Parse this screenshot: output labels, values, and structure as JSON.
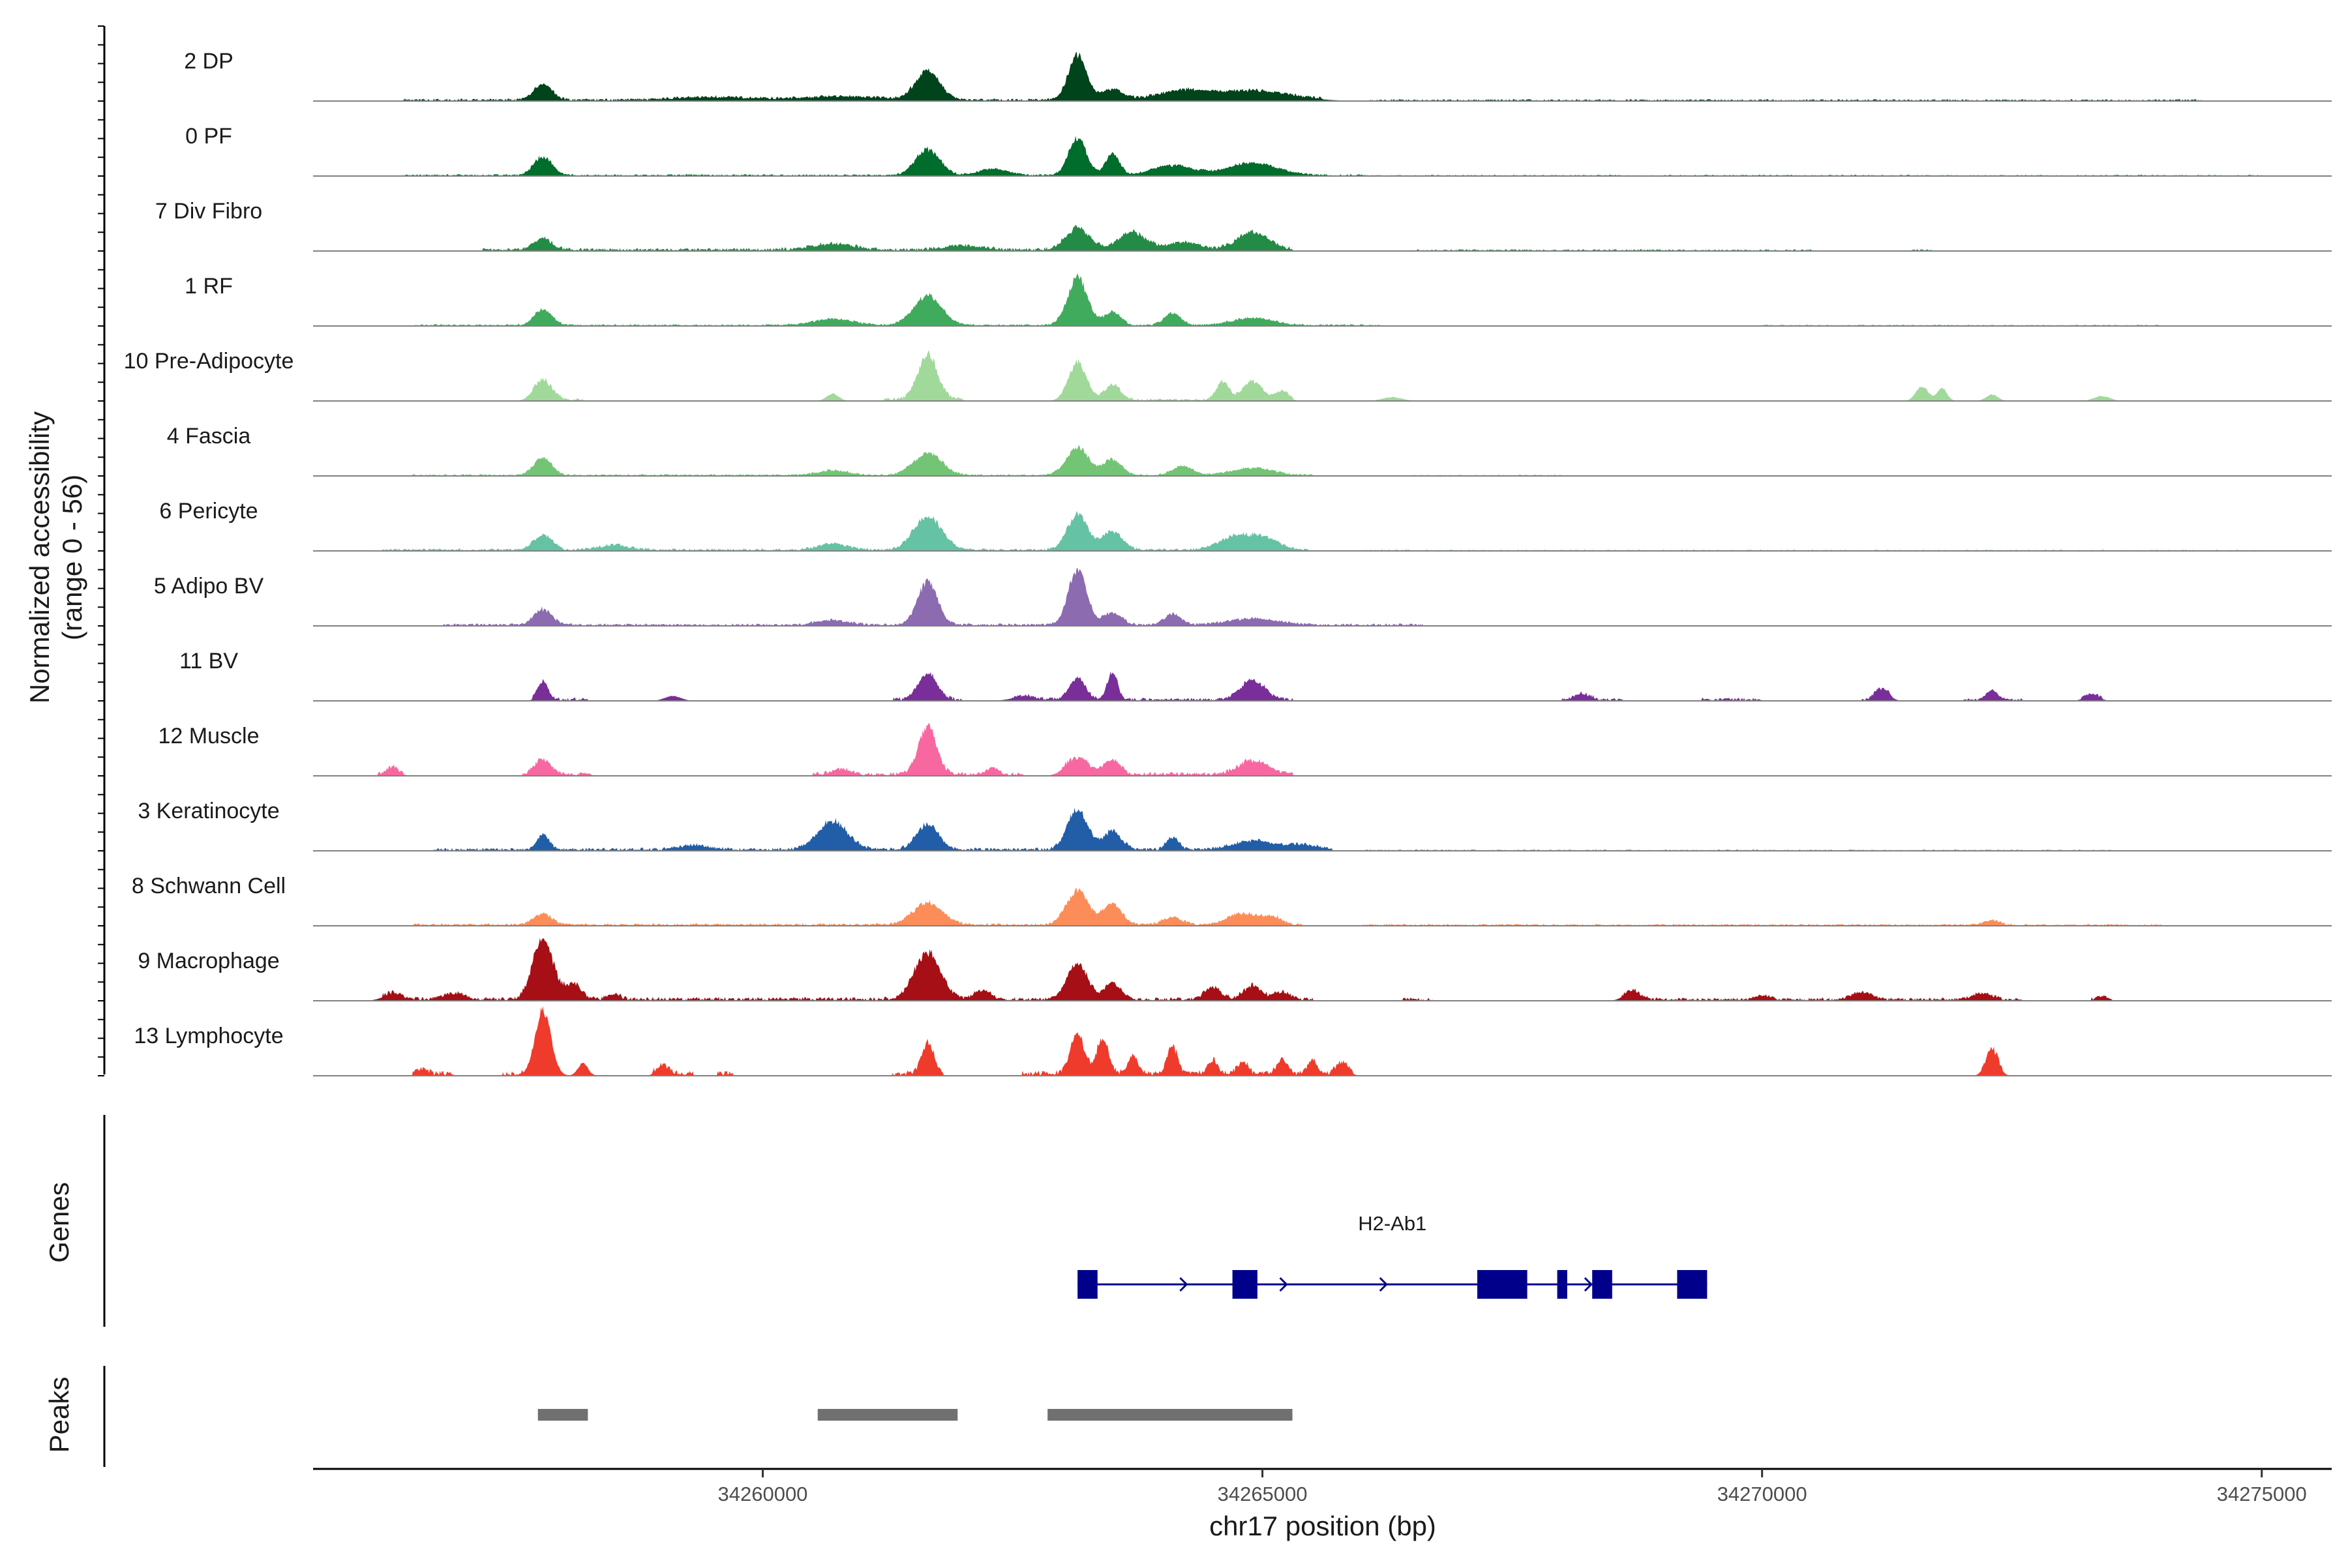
{
  "chart_data": {
    "type": "area",
    "chromosome": "chr17",
    "xlabel": "chr17 position (bp)",
    "ylabel_line1": "Normalized accessibility",
    "ylabel_line2": "(range 0 - 56)",
    "y_range": [
      0,
      56
    ],
    "xlim": [
      34255500,
      34275700
    ],
    "x_ticks": [
      34260000,
      34265000,
      34270000,
      34275000
    ],
    "x_tick_labels": [
      "34260000",
      "34265000",
      "34270000",
      "34275000"
    ],
    "tracks": [
      {
        "name": "2 DP",
        "color": "#00441b",
        "peaks": [
          [
            34257800,
            0.26,
            90
          ],
          [
            34261650,
            0.48,
            120
          ],
          [
            34263150,
            0.72,
            90
          ],
          [
            34263500,
            0.18,
            110
          ],
          [
            34264200,
            0.15,
            250
          ],
          [
            34264800,
            0.12,
            300
          ],
          [
            34265200,
            0.06,
            300
          ],
          [
            34259500,
            0.05,
            400
          ],
          [
            34260800,
            0.06,
            400
          ]
        ],
        "present": [
          [
            34256400,
            34265600,
            0.04
          ],
          [
            34266000,
            34274400,
            0.03
          ]
        ]
      },
      {
        "name": "0 PF",
        "color": "#006d2c",
        "peaks": [
          [
            34257800,
            0.3,
            90
          ],
          [
            34261650,
            0.42,
            120
          ],
          [
            34263150,
            0.6,
            90
          ],
          [
            34263500,
            0.35,
            70
          ],
          [
            34264100,
            0.16,
            200
          ],
          [
            34264900,
            0.2,
            250
          ],
          [
            34262300,
            0.1,
            150
          ]
        ],
        "present": [
          [
            34256400,
            34266000,
            0.03
          ],
          [
            34266000,
            34275000,
            0.02
          ]
        ]
      },
      {
        "name": "7 Div Fibro",
        "color": "#238b45",
        "peaks": [
          [
            34257800,
            0.18,
            90
          ],
          [
            34263150,
            0.35,
            120
          ],
          [
            34263700,
            0.28,
            140
          ],
          [
            34264200,
            0.12,
            150
          ],
          [
            34264900,
            0.28,
            160
          ],
          [
            34262000,
            0.06,
            200
          ],
          [
            34260700,
            0.1,
            200
          ]
        ],
        "present": [
          [
            34257200,
            34265300,
            0.05
          ],
          [
            34266500,
            34270500,
            0.03
          ],
          [
            34271500,
            34271700,
            0.03
          ]
        ]
      },
      {
        "name": "1 RF",
        "color": "#41ab5d",
        "peaks": [
          [
            34257800,
            0.25,
            90
          ],
          [
            34261650,
            0.48,
            140
          ],
          [
            34263150,
            0.75,
            100
          ],
          [
            34263500,
            0.22,
            80
          ],
          [
            34264100,
            0.2,
            80
          ],
          [
            34264900,
            0.12,
            200
          ],
          [
            34260700,
            0.1,
            200
          ]
        ],
        "present": [
          [
            34256500,
            34266200,
            0.03
          ],
          [
            34270000,
            34274000,
            0.02
          ]
        ]
      },
      {
        "name": "10 Pre-Adipocyte",
        "color": "#a1d99b",
        "peaks": [
          [
            34257800,
            0.32,
            90
          ],
          [
            34261650,
            0.72,
            100
          ],
          [
            34263150,
            0.6,
            90
          ],
          [
            34263500,
            0.25,
            80
          ],
          [
            34264600,
            0.3,
            60
          ],
          [
            34264900,
            0.3,
            100
          ],
          [
            34265200,
            0.15,
            60
          ],
          [
            34271600,
            0.24,
            60
          ],
          [
            34271800,
            0.2,
            50
          ],
          [
            34272300,
            0.1,
            60
          ],
          [
            34260700,
            0.12,
            60
          ],
          [
            34273400,
            0.08,
            80
          ],
          [
            34266300,
            0.06,
            100
          ]
        ],
        "present": [
          [
            34257700,
            34258200,
            0.05
          ],
          [
            34261200,
            34262000,
            0.05
          ],
          [
            34263000,
            34265300,
            0.04
          ]
        ]
      },
      {
        "name": "4 Fascia",
        "color": "#74c476",
        "peaks": [
          [
            34257800,
            0.28,
            90
          ],
          [
            34261650,
            0.36,
            140
          ],
          [
            34263150,
            0.45,
            110
          ],
          [
            34263500,
            0.25,
            90
          ],
          [
            34264200,
            0.15,
            100
          ],
          [
            34264900,
            0.12,
            200
          ],
          [
            34260700,
            0.08,
            150
          ]
        ],
        "present": [
          [
            34256500,
            34265500,
            0.03
          ],
          [
            34266500,
            34268000,
            0.02
          ]
        ]
      },
      {
        "name": "6 Pericyte",
        "color": "#66c2a4",
        "peaks": [
          [
            34257800,
            0.25,
            90
          ],
          [
            34261650,
            0.55,
            140
          ],
          [
            34263150,
            0.58,
            100
          ],
          [
            34263500,
            0.3,
            100
          ],
          [
            34264700,
            0.2,
            150
          ],
          [
            34265000,
            0.2,
            150
          ],
          [
            34260700,
            0.1,
            150
          ],
          [
            34258500,
            0.08,
            150
          ]
        ],
        "present": [
          [
            34256200,
            34265500,
            0.04
          ],
          [
            34266000,
            34275000,
            0.02
          ]
        ]
      },
      {
        "name": "5 Adipo BV",
        "color": "#8c6bb1",
        "peaks": [
          [
            34257800,
            0.25,
            90
          ],
          [
            34261650,
            0.7,
            100
          ],
          [
            34263150,
            0.9,
            90
          ],
          [
            34263500,
            0.2,
            90
          ],
          [
            34264100,
            0.18,
            80
          ],
          [
            34264900,
            0.1,
            250
          ],
          [
            34260700,
            0.08,
            150
          ]
        ],
        "present": [
          [
            34256800,
            34266600,
            0.04
          ]
        ]
      },
      {
        "name": "11 BV",
        "color": "#7a2e9a",
        "peaks": [
          [
            34257800,
            0.3,
            50
          ],
          [
            34261650,
            0.42,
            90
          ],
          [
            34263150,
            0.35,
            80
          ],
          [
            34263500,
            0.45,
            50
          ],
          [
            34264900,
            0.32,
            120
          ],
          [
            34268200,
            0.1,
            80
          ],
          [
            34271200,
            0.18,
            70
          ],
          [
            34272300,
            0.15,
            60
          ],
          [
            34273300,
            0.1,
            70
          ],
          [
            34259100,
            0.08,
            80
          ],
          [
            34262600,
            0.06,
            120
          ]
        ],
        "present": [
          [
            34257700,
            34258250,
            0.06
          ],
          [
            34261300,
            34262000,
            0.06
          ],
          [
            34262500,
            34265300,
            0.05
          ],
          [
            34268000,
            34268600,
            0.05
          ],
          [
            34269400,
            34270000,
            0.05
          ],
          [
            34271000,
            34271300,
            0.05
          ],
          [
            34272000,
            34272600,
            0.04
          ],
          [
            34273200,
            34273400,
            0.04
          ]
        ]
      },
      {
        "name": "12 Muscle",
        "color": "#f768a1",
        "peaks": [
          [
            34261650,
            0.78,
            90
          ],
          [
            34257800,
            0.25,
            80
          ],
          [
            34263150,
            0.28,
            110
          ],
          [
            34263500,
            0.22,
            80
          ],
          [
            34264900,
            0.22,
            150
          ],
          [
            34256300,
            0.12,
            60
          ],
          [
            34260800,
            0.08,
            100
          ],
          [
            34262300,
            0.1,
            60
          ]
        ],
        "present": [
          [
            34256150,
            34256400,
            0.06
          ],
          [
            34257600,
            34258300,
            0.06
          ],
          [
            34260500,
            34262600,
            0.06
          ],
          [
            34263000,
            34265300,
            0.06
          ]
        ]
      },
      {
        "name": "3 Keratinocyte",
        "color": "#225ea8",
        "peaks": [
          [
            34257800,
            0.25,
            60
          ],
          [
            34260700,
            0.45,
            150
          ],
          [
            34261650,
            0.4,
            110
          ],
          [
            34263150,
            0.65,
            100
          ],
          [
            34263500,
            0.3,
            90
          ],
          [
            34264100,
            0.2,
            60
          ],
          [
            34264900,
            0.14,
            200
          ],
          [
            34259300,
            0.07,
            150
          ],
          [
            34265400,
            0.08,
            150
          ]
        ],
        "present": [
          [
            34256700,
            34265700,
            0.05
          ],
          [
            34266000,
            34273500,
            0.02
          ]
        ]
      },
      {
        "name": "8 Schwann Cell",
        "color": "#fc8d59",
        "peaks": [
          [
            34257800,
            0.18,
            90
          ],
          [
            34261650,
            0.35,
            150
          ],
          [
            34263150,
            0.55,
            110
          ],
          [
            34263500,
            0.35,
            90
          ],
          [
            34264100,
            0.12,
            100
          ],
          [
            34264800,
            0.18,
            150
          ],
          [
            34265100,
            0.12,
            100
          ],
          [
            34272300,
            0.08,
            80
          ]
        ],
        "present": [
          [
            34256500,
            34265400,
            0.04
          ],
          [
            34266000,
            34274000,
            0.03
          ]
        ]
      },
      {
        "name": "9 Macrophage",
        "color": "#a50f15",
        "peaks": [
          [
            34257800,
            1.0,
            100
          ],
          [
            34258100,
            0.25,
            80
          ],
          [
            34258500,
            0.1,
            60
          ],
          [
            34261650,
            0.75,
            130
          ],
          [
            34262200,
            0.15,
            80
          ],
          [
            34263150,
            0.58,
            100
          ],
          [
            34263500,
            0.25,
            80
          ],
          [
            34264500,
            0.2,
            80
          ],
          [
            34264900,
            0.22,
            90
          ],
          [
            34265200,
            0.12,
            80
          ],
          [
            34256300,
            0.1,
            100
          ],
          [
            34256900,
            0.1,
            100
          ],
          [
            34268700,
            0.15,
            80
          ],
          [
            34271000,
            0.12,
            100
          ],
          [
            34272200,
            0.1,
            100
          ],
          [
            34270000,
            0.07,
            80
          ],
          [
            34273400,
            0.05,
            60
          ]
        ],
        "present": [
          [
            34256200,
            34265500,
            0.06
          ],
          [
            34266400,
            34266700,
            0.05
          ],
          [
            34268600,
            34272600,
            0.05
          ],
          [
            34273300,
            34273500,
            0.05
          ]
        ]
      },
      {
        "name": "13 Lymphocyte",
        "color": "#ef3b2c",
        "peaks": [
          [
            34257800,
            1.05,
            80
          ],
          [
            34258200,
            0.2,
            50
          ],
          [
            34261650,
            0.5,
            60
          ],
          [
            34263150,
            0.65,
            70
          ],
          [
            34263400,
            0.55,
            60
          ],
          [
            34263700,
            0.3,
            50
          ],
          [
            34264100,
            0.45,
            50
          ],
          [
            34264500,
            0.22,
            50
          ],
          [
            34264800,
            0.2,
            50
          ],
          [
            34265200,
            0.25,
            50
          ],
          [
            34265500,
            0.22,
            50
          ],
          [
            34265800,
            0.18,
            60
          ],
          [
            34272300,
            0.42,
            60
          ],
          [
            34259000,
            0.15,
            60
          ],
          [
            34256600,
            0.08,
            50
          ]
        ],
        "present": [
          [
            34256500,
            34256900,
            0.08
          ],
          [
            34257400,
            34257600,
            0.08
          ],
          [
            34258900,
            34259300,
            0.08
          ],
          [
            34259550,
            34259700,
            0.08
          ],
          [
            34261300,
            34261800,
            0.08
          ],
          [
            34262600,
            34265900,
            0.08
          ],
          [
            34272200,
            34272400,
            0.06
          ]
        ]
      }
    ],
    "genes": [
      {
        "name": "H2-Ab1",
        "start": 34263150,
        "end": 34269450,
        "strand": "+",
        "color": "#00008b",
        "exons": [
          [
            34263150,
            34263350
          ],
          [
            34264700,
            34264950
          ],
          [
            34267150,
            34267650
          ],
          [
            34267950,
            34268050
          ],
          [
            34268300,
            34268500
          ],
          [
            34269150,
            34269450
          ]
        ],
        "arrows": [
          34263150,
          34264150,
          34265150,
          34266150,
          34268200
        ]
      }
    ],
    "peak_regions": [
      [
        34257750,
        34258250
      ],
      [
        34260550,
        34261950
      ],
      [
        34262850,
        34265300
      ]
    ],
    "peak_color": "#707070",
    "panel_labels": {
      "genes": "Genes",
      "peaks": "Peaks"
    }
  }
}
